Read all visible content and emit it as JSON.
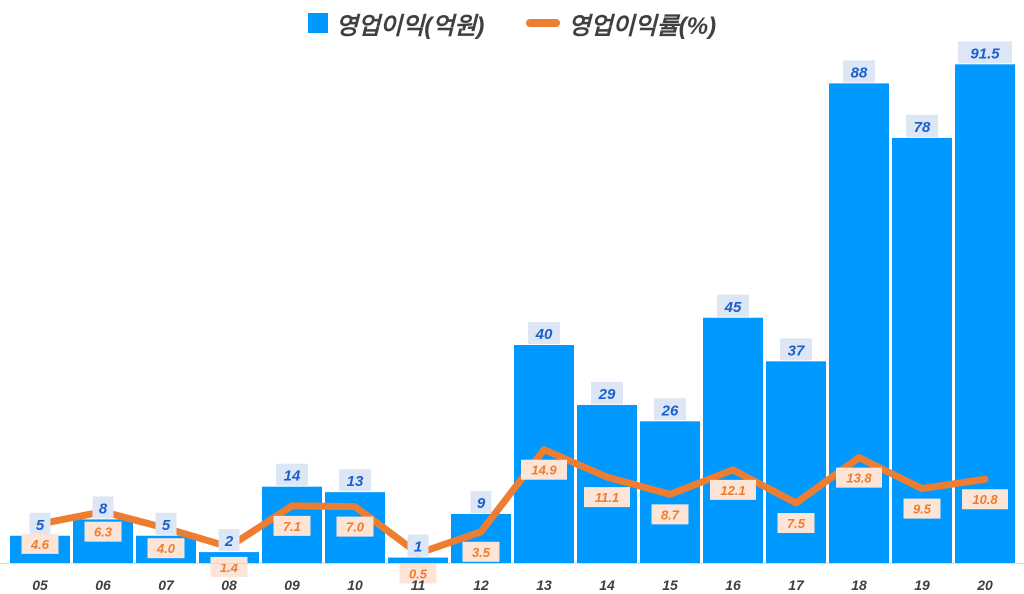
{
  "legend": {
    "bar_label": "영업이익(억원)",
    "line_label": "영업이익률(%)"
  },
  "colors": {
    "bar": "#0099FF",
    "line": "#ED7D31",
    "bar_label_text": "#1A5FD0",
    "bar_label_bg": "#DCE6F5",
    "line_label_text": "#ED7D31",
    "line_label_bg": "#FCE4D6",
    "tick_text": "#404040"
  },
  "chart_data": {
    "type": "bar",
    "categories": [
      "05",
      "06",
      "07",
      "08",
      "09",
      "10",
      "11",
      "12",
      "13",
      "14",
      "15",
      "16",
      "17",
      "18",
      "19",
      "20"
    ],
    "series": [
      {
        "name": "영업이익(억원)",
        "type": "bar",
        "values": [
          5,
          8,
          5,
          2,
          14,
          13,
          1,
          9,
          40,
          29,
          26,
          45,
          37,
          88,
          78,
          91.5
        ],
        "labels": [
          "5",
          "8",
          "5",
          "2",
          "14",
          "13",
          "1",
          "9",
          "40",
          "29",
          "26",
          "45",
          "37",
          "88",
          "78",
          "91.5"
        ]
      },
      {
        "name": "영업이익률(%)",
        "type": "line",
        "values": [
          4.6,
          6.3,
          4.0,
          1.4,
          7.1,
          7.0,
          0.5,
          3.5,
          14.9,
          11.1,
          8.7,
          12.1,
          7.5,
          13.8,
          9.5,
          10.8
        ],
        "labels": [
          "4.6",
          "6.3",
          "4.0",
          "1.4",
          "7.1",
          "7.0",
          "0.5",
          "3.5",
          "14.9",
          "11.1",
          "8.7",
          "12.1",
          "7.5",
          "13.8",
          "9.5",
          "10.8"
        ]
      }
    ],
    "grid": false,
    "legend_position": "top-center"
  }
}
